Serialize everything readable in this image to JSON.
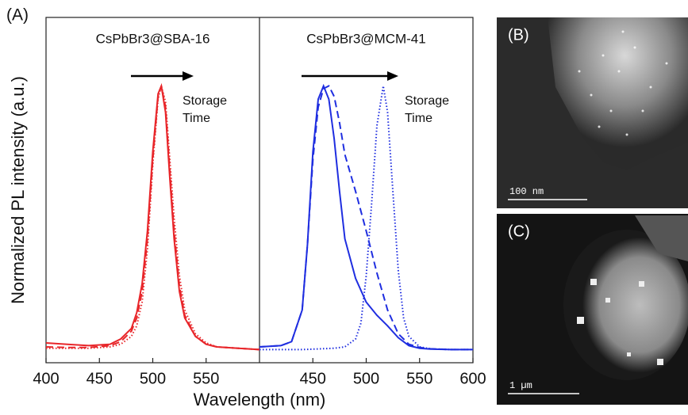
{
  "figure": {
    "panel_label": "(A)",
    "ylabel": "Normalized PL intensity (a.u.)",
    "xlabel": "Wavelength (nm)"
  },
  "chart_data": [
    {
      "type": "line",
      "title": "CsPbBr3@SBA-16",
      "annotation": [
        "Storage",
        "Time"
      ],
      "xlim": [
        400,
        600
      ],
      "ylim": [
        -0.05,
        1.26
      ],
      "xticks": [
        400,
        450,
        500,
        550
      ],
      "series": [
        {
          "color": "#e8262a",
          "linestyle": "solid",
          "x": [
            400,
            420,
            440,
            460,
            470,
            480,
            485,
            490,
            495,
            500,
            505,
            508,
            512,
            516,
            520,
            525,
            530,
            540,
            550,
            560,
            580,
            600
          ],
          "values": [
            0.025,
            0.02,
            0.015,
            0.02,
            0.04,
            0.08,
            0.14,
            0.25,
            0.45,
            0.75,
            0.97,
            1.0,
            0.9,
            0.65,
            0.42,
            0.22,
            0.12,
            0.05,
            0.02,
            0.01,
            0.005,
            0.0
          ]
        },
        {
          "color": "#e8262a",
          "linestyle": "dashed",
          "x": [
            400,
            420,
            440,
            460,
            470,
            480,
            485,
            490,
            495,
            500,
            505,
            508,
            512,
            516,
            520,
            525,
            530,
            540,
            550,
            560,
            580,
            600
          ],
          "values": [
            0.01,
            0.008,
            0.008,
            0.015,
            0.03,
            0.07,
            0.12,
            0.22,
            0.42,
            0.72,
            0.96,
            1.0,
            0.92,
            0.68,
            0.45,
            0.24,
            0.13,
            0.05,
            0.02,
            0.01,
            0.005,
            0.0
          ]
        },
        {
          "color": "#e8262a",
          "linestyle": "dotted",
          "x": [
            400,
            420,
            440,
            460,
            470,
            480,
            485,
            490,
            495,
            500,
            505,
            508,
            512,
            516,
            520,
            525,
            530,
            540,
            550,
            560,
            580,
            600
          ],
          "values": [
            0.005,
            0.005,
            0.005,
            0.01,
            0.02,
            0.05,
            0.09,
            0.18,
            0.38,
            0.7,
            0.95,
            1.0,
            0.94,
            0.72,
            0.5,
            0.28,
            0.15,
            0.06,
            0.025,
            0.01,
            0.005,
            0.0
          ]
        }
      ]
    },
    {
      "type": "line",
      "title": "CsPbBr3@MCM-41",
      "annotation": [
        "Storage",
        "Time"
      ],
      "xlim": [
        400,
        600
      ],
      "ylim": [
        -0.05,
        1.26
      ],
      "xticks": [
        450,
        500,
        550,
        600
      ],
      "series": [
        {
          "color": "#1f2ee0",
          "linestyle": "solid",
          "x": [
            400,
            420,
            430,
            440,
            445,
            450,
            455,
            460,
            465,
            470,
            475,
            480,
            490,
            500,
            510,
            520,
            530,
            540,
            550,
            560,
            580,
            600
          ],
          "values": [
            0.01,
            0.015,
            0.03,
            0.15,
            0.4,
            0.75,
            0.95,
            1.0,
            0.95,
            0.8,
            0.6,
            0.42,
            0.27,
            0.18,
            0.13,
            0.09,
            0.045,
            0.015,
            0.005,
            0.002,
            0.0,
            0.0
          ]
        },
        {
          "color": "#1f2ee0",
          "linestyle": "dashed",
          "x": [
            400,
            420,
            430,
            440,
            445,
            450,
            455,
            460,
            465,
            470,
            475,
            480,
            490,
            500,
            510,
            520,
            530,
            540,
            550,
            560,
            580,
            600
          ],
          "values": [
            0.01,
            0.015,
            0.03,
            0.15,
            0.4,
            0.72,
            0.92,
            0.99,
            1.0,
            0.96,
            0.86,
            0.74,
            0.6,
            0.45,
            0.29,
            0.15,
            0.06,
            0.02,
            0.008,
            0.003,
            0.0,
            0.0
          ]
        },
        {
          "color": "#1f2ee0",
          "linestyle": "dotted",
          "x": [
            400,
            440,
            470,
            480,
            490,
            495,
            500,
            505,
            510,
            516,
            520,
            525,
            530,
            535,
            540,
            550,
            560,
            580,
            600
          ],
          "values": [
            0.0,
            0.0,
            0.005,
            0.01,
            0.04,
            0.1,
            0.28,
            0.55,
            0.85,
            1.0,
            0.9,
            0.6,
            0.3,
            0.12,
            0.05,
            0.01,
            0.003,
            0.0,
            0.0
          ]
        }
      ]
    }
  ],
  "images": [
    {
      "label": "(B)",
      "scale_bar": "100 nm"
    },
    {
      "label": "(C)",
      "scale_bar": "1 µm"
    }
  ]
}
